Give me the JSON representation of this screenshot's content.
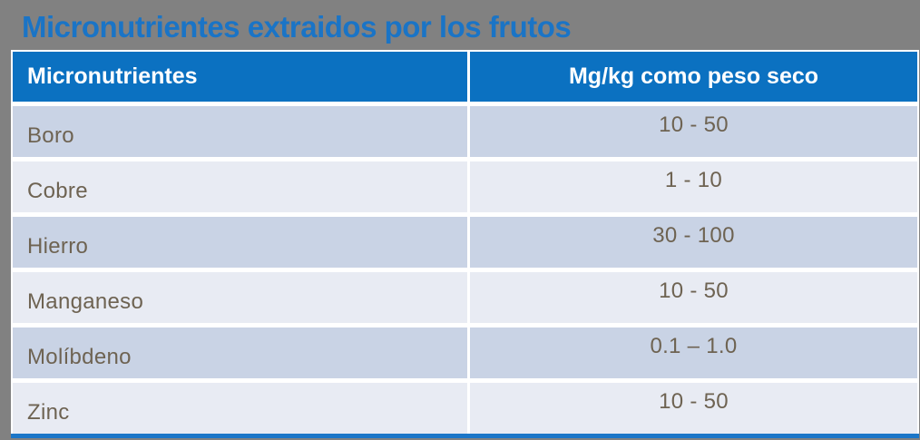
{
  "slide": {
    "title": "Micronutrientes extraidos por los frutos"
  },
  "table": {
    "header": {
      "col_nutrient": "Micronutrientes",
      "col_value": "Mg/kg como peso seco"
    },
    "rows": [
      {
        "name": "Boro",
        "value": "10 - 50"
      },
      {
        "name": "Cobre",
        "value": "1 - 10"
      },
      {
        "name": "Hierro",
        "value": "30 - 100"
      },
      {
        "name": "Manganeso",
        "value": "10 - 50"
      },
      {
        "name": "Molíbdeno",
        "value": "0.1 – 1.0"
      },
      {
        "name": "Zinc",
        "value": "10 - 50"
      }
    ]
  },
  "colors": {
    "background": "#818181",
    "title_blue": "#1A74C6",
    "header_blue": "#0B71C1",
    "header_text": "#FFFFFF",
    "row_dark": "#C9D3E5",
    "row_light": "#E8EBF3",
    "row_text": "#6E6352",
    "divider_white": "#FFFFFF",
    "bottom_border_blue": "#1B76C8"
  }
}
